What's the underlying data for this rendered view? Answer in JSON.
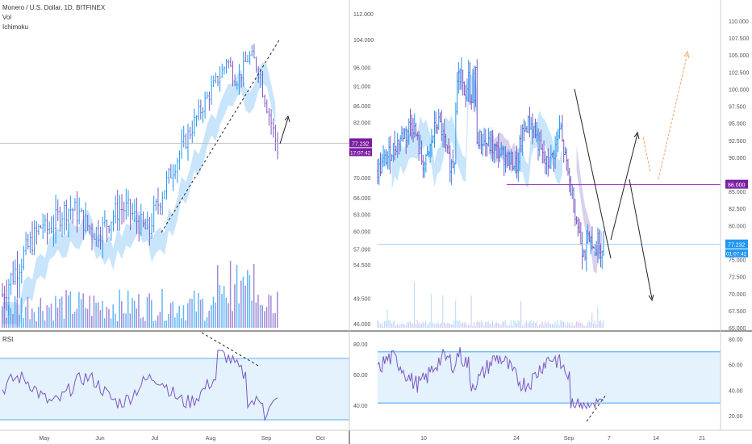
{
  "header": {
    "symbol": "Monero / U.S. Dollar, 1D, BITFINEX",
    "indicator1": "Vol",
    "indicator2": "Ichimoku"
  },
  "colors": {
    "up": "#2196f3",
    "down": "#7e57c2",
    "cloud_bull": "#bbdefb",
    "cloud_bear": "#d1c4e9",
    "rsi_line": "#7e57c2",
    "rsi_band": "#e3f2fd",
    "rsi_bound": "#2196f3",
    "price_tag": "#7b1fa2",
    "level_line": "#9c27b0",
    "orange_arrow": "#f5a05a",
    "grid_text": "#555555"
  },
  "chart_data": [
    {
      "type": "candlestick",
      "panel": "left-price",
      "x_ticks": [
        "May",
        "Jun",
        "Jul",
        "Aug",
        "Sep",
        "Oct"
      ],
      "y_ticks": [
        "112.000",
        "104.000",
        "96.000",
        "91.000",
        "86.000",
        "82.000",
        "77.232",
        "70.000",
        "66.000",
        "63.000",
        "60.000",
        "57.000",
        "54.500",
        "49.500",
        "46.000"
      ],
      "last_price": "77.232",
      "countdown": "17:07:42",
      "ylim": [
        45,
        114
      ],
      "scale": "log",
      "indicators": [
        "Vol",
        "Ichimoku"
      ]
    },
    {
      "type": "line",
      "panel": "left-rsi",
      "label": "RSI",
      "y_ticks": [
        "80.00",
        "60.00",
        "40.00"
      ],
      "bands": [
        30,
        70
      ]
    },
    {
      "type": "candlestick",
      "panel": "right-price",
      "x_ticks": [
        "10",
        "24",
        "Sep",
        "7",
        "14",
        "21"
      ],
      "y_ticks": [
        "110.000",
        "107.500",
        "105.000",
        "102.500",
        "100.000",
        "97.500",
        "95.000",
        "92.500",
        "90.000",
        "85.000",
        "82.500",
        "80.000",
        "75.000",
        "72.500",
        "70.000",
        "67.500",
        "65.000"
      ],
      "level_line": "86.000",
      "last_price": "77.232",
      "countdown": "01:07:42",
      "ylim": [
        65,
        111
      ]
    },
    {
      "type": "line",
      "panel": "right-rsi",
      "y_ticks": [
        "80.00",
        "60.00",
        "40.00",
        "20.00"
      ],
      "bands": [
        30,
        70
      ]
    }
  ]
}
